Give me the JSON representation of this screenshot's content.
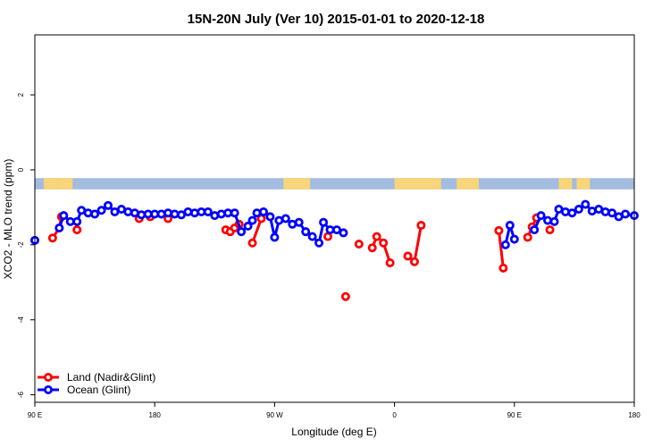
{
  "chart_data": {
    "type": "line",
    "title": "15N-20N July (Ver 10)   2015-01-01 to 2020-12-18",
    "xlabel": "Longitude (deg E)",
    "ylabel": "XCO2 - MLO trend (ppm)",
    "xlim": [
      -90,
      180
    ],
    "ylim": [
      -6.2,
      3.6
    ],
    "x_ticks": [
      {
        "value": -90,
        "label": "90 E"
      },
      {
        "value": -36,
        "label": "180"
      },
      {
        "value": 18,
        "label": "90 W"
      },
      {
        "value": 72,
        "label": "0"
      },
      {
        "value": 126,
        "label": "90 E"
      },
      {
        "value": 180,
        "label": "180"
      }
    ],
    "y_ticks": [
      2,
      0,
      -2,
      -4,
      -6
    ],
    "map_strip": {
      "y_top": -0.22,
      "y_bottom": -0.52,
      "ocean_color": "#a3bcdf",
      "land_color": "#f8d57a",
      "land_ranges": [
        [
          -86,
          -80
        ],
        [
          -80,
          -73
        ],
        [
          22,
          34
        ],
        [
          72,
          93
        ],
        [
          100,
          110
        ],
        [
          146,
          152
        ],
        [
          154,
          160
        ]
      ]
    },
    "legend": {
      "position": "bottom-left"
    },
    "series": [
      {
        "name": "Land (Nadir&Glint)",
        "color": "#ff0000",
        "points": [
          [
            -82,
            -1.82
          ],
          [
            -79,
            -1.55
          ],
          [
            -78,
            -1.25
          ],
          [
            -71,
            -1.6
          ],
          [
            -43,
            -1.3
          ],
          [
            -38,
            -1.25
          ],
          [
            -30,
            -1.3
          ],
          [
            -4,
            -1.6
          ],
          [
            -2,
            -1.65
          ],
          [
            0,
            -1.55
          ],
          [
            2,
            -1.45
          ],
          [
            8,
            -1.95
          ],
          [
            12,
            -1.3
          ],
          [
            42,
            -1.78
          ],
          [
            50,
            -3.38
          ],
          [
            56,
            -1.98
          ],
          [
            62,
            -2.08
          ],
          [
            64,
            -1.78
          ],
          [
            67,
            -1.95
          ],
          [
            70,
            -2.48
          ],
          [
            78,
            -2.3
          ],
          [
            81,
            -2.45
          ],
          [
            84,
            -1.48
          ],
          [
            119,
            -1.62
          ],
          [
            121,
            -2.62
          ],
          [
            132,
            -1.8
          ],
          [
            134,
            -1.52
          ],
          [
            136,
            -1.28
          ],
          [
            142,
            -1.6
          ]
        ]
      },
      {
        "name": "Ocean (Glint)",
        "color": "#0000ff",
        "points": [
          [
            -90,
            -1.88
          ],
          [
            -79,
            -1.55
          ],
          [
            -77,
            -1.22
          ],
          [
            -74,
            -1.38
          ],
          [
            -71,
            -1.38
          ],
          [
            -69,
            -1.08
          ],
          [
            -66,
            -1.15
          ],
          [
            -63,
            -1.18
          ],
          [
            -60,
            -1.08
          ],
          [
            -57,
            -0.95
          ],
          [
            -54,
            -1.12
          ],
          [
            -51,
            -1.05
          ],
          [
            -48,
            -1.12
          ],
          [
            -45,
            -1.15
          ],
          [
            -42,
            -1.2
          ],
          [
            -39,
            -1.18
          ],
          [
            -36,
            -1.18
          ],
          [
            -33,
            -1.18
          ],
          [
            -30,
            -1.15
          ],
          [
            -27,
            -1.18
          ],
          [
            -24,
            -1.2
          ],
          [
            -21,
            -1.12
          ],
          [
            -18,
            -1.15
          ],
          [
            -15,
            -1.12
          ],
          [
            -12,
            -1.12
          ],
          [
            -9,
            -1.22
          ],
          [
            -6,
            -1.18
          ],
          [
            -3,
            -1.15
          ],
          [
            0,
            -1.15
          ],
          [
            3,
            -1.65
          ],
          [
            6,
            -1.5
          ],
          [
            8,
            -1.35
          ],
          [
            10,
            -1.15
          ],
          [
            13,
            -1.12
          ],
          [
            16,
            -1.25
          ],
          [
            18,
            -1.8
          ],
          [
            20,
            -1.35
          ],
          [
            23,
            -1.3
          ],
          [
            26,
            -1.45
          ],
          [
            29,
            -1.4
          ],
          [
            32,
            -1.65
          ],
          [
            35,
            -1.78
          ],
          [
            38,
            -1.95
          ],
          [
            40,
            -1.4
          ],
          [
            43,
            -1.6
          ],
          [
            46,
            -1.6
          ],
          [
            49,
            -1.68
          ],
          [
            122,
            -2.0
          ],
          [
            124,
            -1.48
          ],
          [
            126,
            -1.85
          ],
          [
            135,
            -1.6
          ],
          [
            138,
            -1.22
          ],
          [
            141,
            -1.35
          ],
          [
            144,
            -1.38
          ],
          [
            146,
            -1.05
          ],
          [
            149,
            -1.12
          ],
          [
            152,
            -1.15
          ],
          [
            155,
            -1.05
          ],
          [
            158,
            -0.92
          ],
          [
            161,
            -1.1
          ],
          [
            164,
            -1.05
          ],
          [
            167,
            -1.12
          ],
          [
            170,
            -1.15
          ],
          [
            173,
            -1.25
          ],
          [
            176,
            -1.18
          ],
          [
            180,
            -1.22
          ]
        ]
      }
    ]
  }
}
